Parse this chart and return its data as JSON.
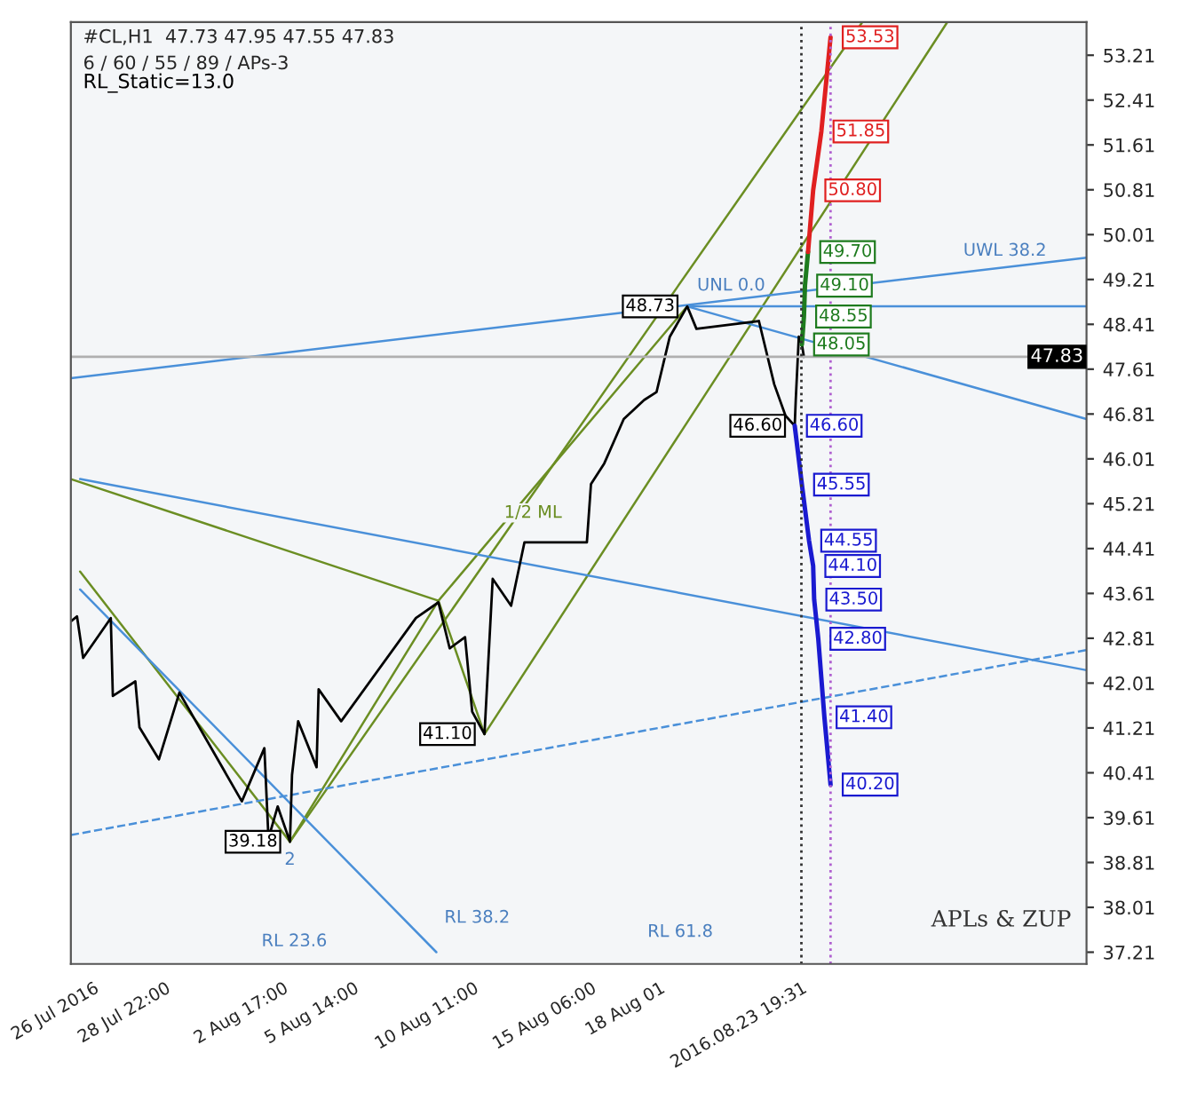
{
  "chart_data": {
    "type": "line",
    "title": "#CL,H1  47.73 47.95 47.55 47.83",
    "subtitle": "6 / 60 / 55 / 89 / APs-3",
    "annotations": [
      "RL_Static=13.0",
      "APLs & ZUP",
      "1/2 ML",
      "RL 23.6",
      "RL 38.2",
      "RL 61.8",
      {
        "text": "2",
        "x": "2016-08-03T00:00",
        "y": 39.18
      },
      {
        "text": "UWL 38.2",
        "x": "2016-08-30T00:00",
        "y": 49.35
      },
      {
        "text": "UNL 0.0",
        "x": "2016-08-19T04:00",
        "y": 48.73
      }
    ],
    "xlim": [
      "2016-07-25T02:00",
      "2016-09-04T10:00"
    ],
    "ylim": [
      37.0,
      53.8
    ],
    "xticks": [
      {
        "value": "2016-07-26T00:00",
        "label": "26 Jul 2016"
      },
      {
        "value": "2016-07-28T22:00",
        "label": "28 Jul 22:00"
      },
      {
        "value": "2016-08-02T17:00",
        "label": "2 Aug 17:00"
      },
      {
        "value": "2016-08-05T14:00",
        "label": "5 Aug 14:00"
      },
      {
        "value": "2016-08-10T11:00",
        "label": "10 Aug 11:00"
      },
      {
        "value": "2016-08-15T06:00",
        "label": "15 Aug 06:00"
      },
      {
        "value": "2016-08-18T01:00",
        "label": "18 Aug 01"
      },
      {
        "value": "2016-08-23T19:31",
        "label": "2016.08.23 19:31"
      }
    ],
    "yticks": [
      37.21,
      38.01,
      38.81,
      39.61,
      40.41,
      41.21,
      42.01,
      42.81,
      43.61,
      44.41,
      45.21,
      46.01,
      46.81,
      47.61,
      48.41,
      49.21,
      50.01,
      50.81,
      51.61,
      52.41,
      53.21
    ],
    "grid": false,
    "ref_lines": [
      {
        "axis": "y",
        "value": 47.83,
        "label": "47.83",
        "color": "#b0b0b0",
        "line_style": "solid"
      },
      {
        "axis": "x",
        "value": "2016-08-23T19:31",
        "color": "#333333",
        "line_style": "dotted"
      },
      {
        "axis": "x",
        "value": "2016-08-25T00:00",
        "color": "#b060d0",
        "line_style": "dotted"
      }
    ],
    "series": [
      {
        "color": "#6b8e23",
        "x": [
          "2016-07-25T02:00",
          "2016-08-09T01:00",
          "2016-08-19T04:00"
        ],
        "values": [
          45.65,
          43.48,
          48.73
        ]
      },
      {
        "color": "#6b8e23",
        "x": [
          "2016-07-25T11:00",
          "2016-08-03T00:00",
          "2016-08-09T01:00",
          "2016-08-10T22:00"
        ],
        "values": [
          44.0,
          39.18,
          43.48,
          41.1
        ]
      },
      {
        "color": "#6b8e23",
        "x": [
          "2016-08-03T00:00",
          "2016-08-26T07:00"
        ],
        "values": [
          39.18,
          53.8
        ]
      },
      {
        "color": "#6b8e23",
        "x": [
          "2016-08-10T22:00",
          "2016-08-29T18:00"
        ],
        "values": [
          41.1,
          53.8
        ]
      },
      {
        "color": "#4a90d9",
        "x": [
          "2016-07-25T11:00",
          "2016-09-04T10:00"
        ],
        "values": [
          45.65,
          42.24
        ]
      },
      {
        "color": "#4a90d9",
        "x": [
          "2016-07-25T11:00",
          "2016-08-08T23:00"
        ],
        "values": [
          43.68,
          37.21
        ]
      },
      {
        "color": "#4a90d9",
        "x": [
          "2016-07-25T02:00",
          "2016-09-04T10:00"
        ],
        "values": [
          47.45,
          49.6
        ]
      },
      {
        "color": "#4a90d9",
        "x": [
          "2016-08-19T04:00",
          "2016-09-04T10:00"
        ],
        "values": [
          48.73,
          48.73
        ]
      },
      {
        "color": "#4a90d9",
        "x": [
          "2016-08-19T04:00",
          "2016-09-04T10:00"
        ],
        "values": [
          48.73,
          46.72
        ]
      },
      {
        "color": "#4a90d9",
        "line_style": "dashed",
        "x": [
          "2016-07-25T02:00",
          "2016-09-04T10:00"
        ],
        "values": [
          39.3,
          42.6
        ]
      },
      {
        "color": "#000000",
        "x": [
          "2016-07-25T02:00",
          "2016-07-25T08:00",
          "2016-07-25T14:00",
          "2016-07-26T17:00",
          "2016-07-26T19:00",
          "2016-07-27T17:00",
          "2016-07-27T21:00",
          "2016-07-28T16:00",
          "2016-07-29T12:00",
          "2016-08-01T01:00",
          "2016-08-01T23:00",
          "2016-08-02T03:00",
          "2016-08-02T12:00",
          "2016-08-03T00:00",
          "2016-08-03T02:00",
          "2016-08-03T08:00",
          "2016-08-04T02:00",
          "2016-08-04T04:00",
          "2016-08-05T02:00",
          "2016-08-08T03:00",
          "2016-08-09T01:00",
          "2016-08-09T12:00",
          "2016-08-10T03:00",
          "2016-08-10T10:00",
          "2016-08-10T22:00",
          "2016-08-11T06:00",
          "2016-08-12T00:00",
          "2016-08-12T13:00",
          "2016-08-15T02:00",
          "2016-08-15T06:00",
          "2016-08-15T19:00",
          "2016-08-16T14:00",
          "2016-08-17T10:00",
          "2016-08-17T22:00",
          "2016-08-18T11:00",
          "2016-08-19T04:00",
          "2016-08-19T13:00",
          "2016-08-22T02:00",
          "2016-08-22T17:00",
          "2016-08-23T04:00",
          "2016-08-23T13:00",
          "2016-08-23T14:00",
          "2016-08-23T17:00",
          "2016-08-23T20:00",
          "2016-08-23T22:00"
        ],
        "values": [
          43.11,
          43.2,
          42.46,
          43.17,
          41.78,
          42.04,
          41.22,
          40.65,
          41.84,
          39.9,
          40.85,
          39.24,
          39.81,
          39.18,
          40.37,
          41.33,
          40.51,
          41.9,
          41.33,
          43.17,
          43.45,
          42.63,
          42.83,
          41.5,
          41.1,
          43.87,
          43.39,
          44.52,
          44.52,
          45.56,
          45.93,
          46.72,
          47.06,
          47.2,
          48.19,
          48.73,
          48.33,
          48.47,
          47.34,
          46.78,
          46.6,
          47.06,
          48.19,
          48.05,
          47.83
        ],
        "value_labels": [
          null,
          null,
          null,
          null,
          null,
          null,
          null,
          null,
          null,
          null,
          null,
          null,
          null,
          "39.18",
          null,
          null,
          null,
          null,
          null,
          null,
          null,
          null,
          null,
          null,
          "41.10",
          null,
          null,
          null,
          null,
          null,
          null,
          null,
          null,
          null,
          null,
          "48.73",
          null,
          null,
          null,
          null,
          "46.60",
          null,
          null,
          null,
          null
        ]
      },
      {
        "color": "#1e7b1e",
        "x": [
          "2016-08-23T20:00",
          "2016-08-23T22:00",
          "2016-08-23T23:00",
          "2016-08-24T02:00"
        ],
        "values": [
          48.05,
          48.55,
          49.1,
          49.7
        ],
        "value_labels": [
          "48.05",
          "48.55",
          "49.10",
          "49.70"
        ]
      },
      {
        "color": "#e02020",
        "x": [
          "2016-08-24T02:00",
          "2016-08-24T07:00",
          "2016-08-24T15:00",
          "2016-08-25T00:00"
        ],
        "values": [
          49.7,
          50.8,
          51.85,
          53.53
        ],
        "value_labels": [
          null,
          "50.80",
          "51.85",
          "53.53"
        ]
      },
      {
        "color": "#1a1ad0",
        "x": [
          "2016-08-23T13:00",
          "2016-08-23T20:00",
          "2016-08-24T03:00",
          "2016-08-24T07:00",
          "2016-08-24T08:00",
          "2016-08-24T12:00",
          "2016-08-24T18:00",
          "2016-08-25T00:00"
        ],
        "values": [
          46.6,
          45.55,
          44.55,
          44.1,
          43.5,
          42.8,
          41.4,
          40.2
        ],
        "value_labels": [
          "46.60",
          "45.55",
          "44.55",
          "44.10",
          "43.50",
          "42.80",
          "41.40",
          "40.20"
        ]
      }
    ]
  }
}
